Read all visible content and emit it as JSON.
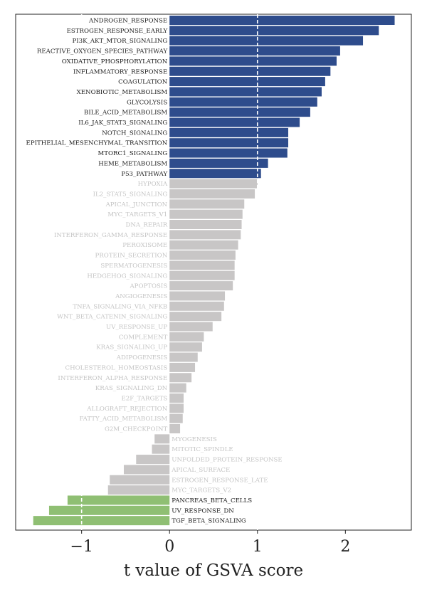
{
  "chart_data": {
    "type": "bar",
    "orientation": "horizontal",
    "xlabel": "t value of GSVA score",
    "ylabel": "",
    "title": "",
    "xlim": [
      -1.75,
      2.75
    ],
    "xticks": [
      -1,
      0,
      1,
      2
    ],
    "xtick_labels": [
      "−1",
      "0",
      "1",
      "2"
    ],
    "threshold_lines": [
      -1,
      1
    ],
    "grid": false,
    "legend": "none",
    "colors": {
      "up": "#2e4c8c",
      "neutral": "#c8c6c6",
      "down": "#8fbf73",
      "label_dark": "#1a1a1a",
      "label_light": "#c4c4c4",
      "threshold": "#ffffff"
    },
    "categories": [
      "ANDROGEN_RESPONSE",
      "ESTROGEN_RESPONSE_EARLY",
      "PI3K_AKT_MTOR_SIGNALING",
      "REACTIVE_OXYGEN_SPECIES_PATHWAY",
      "OXIDATIVE_PHOSPHORYLATION",
      "INFLAMMATORY_RESPONSE",
      "COAGULATION",
      "XENOBIOTIC_METABOLISM",
      "GLYCOLYSIS",
      "BILE_ACID_METABOLISM",
      "IL6_JAK_STAT3_SIGNALING",
      "NOTCH_SIGNALING",
      "EPITHELIAL_MESENCHYMAL_TRANSITION",
      "MTORC1_SIGNALING",
      "HEME_METABOLISM",
      "P53_PATHWAY",
      "HYPOXIA",
      "IL2_STAT5_SIGNALING",
      "APICAL_JUNCTION",
      "MYC_TARGETS_V1",
      "DNA_REPAIR",
      "INTERFERON_GAMMA_RESPONSE",
      "PEROXISOME",
      "PROTEIN_SECRETION",
      "SPERMATOGENESIS",
      "HEDGEHOG_SIGNALING",
      "APOPTOSIS",
      "ANGIOGENESIS",
      "TNFA_SIGNALING_VIA_NFKB",
      "WNT_BETA_CATENIN_SIGNALING",
      "UV_RESPONSE_UP",
      "COMPLEMENT",
      "KRAS_SIGNALING_UP",
      "ADIPOGENESIS",
      "CHOLESTEROL_HOMEOSTASIS",
      "INTERFERON_ALPHA_RESPONSE",
      "KRAS_SIGNALING_DN",
      "E2F_TARGETS",
      "ALLOGRAFT_REJECTION",
      "FATTY_ACID_METABOLISM",
      "G2M_CHECKPOINT",
      "MYOGENESIS",
      "MITOTIC_SPINDLE",
      "UNFOLDED_PROTEIN_RESPONSE",
      "APICAL_SURFACE",
      "ESTROGEN_RESPONSE_LATE",
      "MYC_TARGETS_V2",
      "PANCREAS_BETA_CELLS",
      "UV_RESPONSE_DN",
      "TGF_BETA_SIGNALING"
    ],
    "values": [
      2.56,
      2.38,
      2.2,
      1.94,
      1.9,
      1.83,
      1.77,
      1.73,
      1.68,
      1.6,
      1.48,
      1.35,
      1.35,
      1.34,
      1.12,
      1.04,
      1.0,
      0.97,
      0.85,
      0.83,
      0.82,
      0.81,
      0.78,
      0.75,
      0.74,
      0.74,
      0.72,
      0.63,
      0.62,
      0.59,
      0.49,
      0.39,
      0.37,
      0.32,
      0.29,
      0.25,
      0.19,
      0.16,
      0.16,
      0.15,
      0.12,
      -0.17,
      -0.2,
      -0.38,
      -0.52,
      -0.68,
      -0.7,
      -1.16,
      -1.37,
      -1.55
    ],
    "groups": [
      "up",
      "up",
      "up",
      "up",
      "up",
      "up",
      "up",
      "up",
      "up",
      "up",
      "up",
      "up",
      "up",
      "up",
      "up",
      "up",
      "neutral",
      "neutral",
      "neutral",
      "neutral",
      "neutral",
      "neutral",
      "neutral",
      "neutral",
      "neutral",
      "neutral",
      "neutral",
      "neutral",
      "neutral",
      "neutral",
      "neutral",
      "neutral",
      "neutral",
      "neutral",
      "neutral",
      "neutral",
      "neutral",
      "neutral",
      "neutral",
      "neutral",
      "neutral",
      "neutral",
      "neutral",
      "neutral",
      "neutral",
      "neutral",
      "neutral",
      "down",
      "down",
      "down"
    ]
  }
}
